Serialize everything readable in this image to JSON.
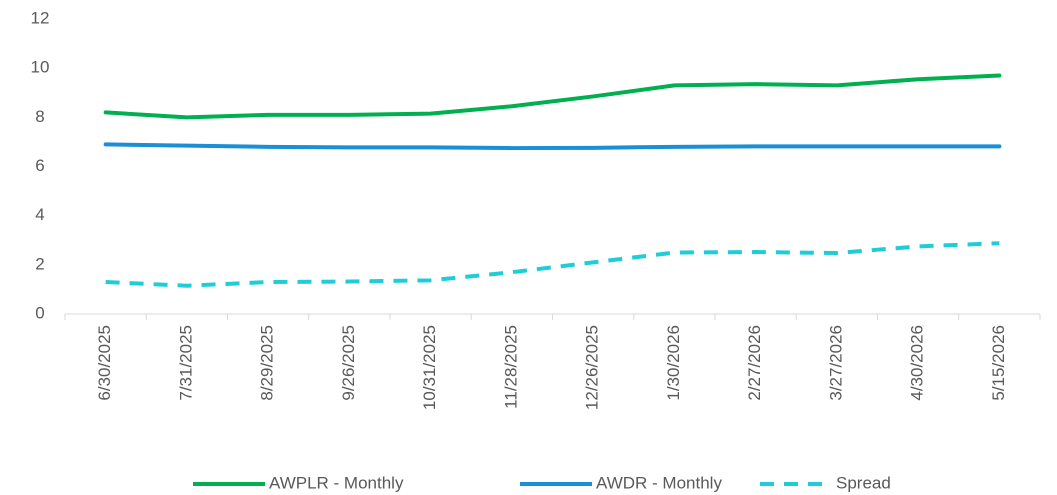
{
  "chart_data": {
    "type": "line",
    "categories": [
      "6/30/2025",
      "7/31/2025",
      "8/29/2025",
      "9/26/2025",
      "10/31/2025",
      "11/28/2025",
      "12/26/2025",
      "1/30/2026",
      "2/27/2026",
      "3/27/2026",
      "4/30/2026",
      "5/15/2026"
    ],
    "series": [
      {
        "name": "AWPLR - Monthly",
        "color": "#00b050",
        "dash": false,
        "values": [
          8.2,
          8.0,
          8.1,
          8.1,
          8.15,
          8.45,
          8.85,
          9.3,
          9.35,
          9.3,
          9.55,
          9.7
        ]
      },
      {
        "name": "AWDR - Monthly",
        "color": "#1a8fd6",
        "dash": false,
        "values": [
          6.9,
          6.85,
          6.8,
          6.78,
          6.78,
          6.75,
          6.76,
          6.8,
          6.82,
          6.82,
          6.82,
          6.82
        ]
      },
      {
        "name": "Spread",
        "color": "#1fcdd8",
        "dash": true,
        "values": [
          1.3,
          1.15,
          1.3,
          1.32,
          1.37,
          1.7,
          2.1,
          2.5,
          2.52,
          2.48,
          2.75,
          2.88
        ]
      }
    ],
    "ylim": [
      0,
      12
    ],
    "yticks": [
      0,
      2,
      4,
      6,
      8,
      10,
      12
    ],
    "grid": false,
    "legend": "bottom"
  }
}
